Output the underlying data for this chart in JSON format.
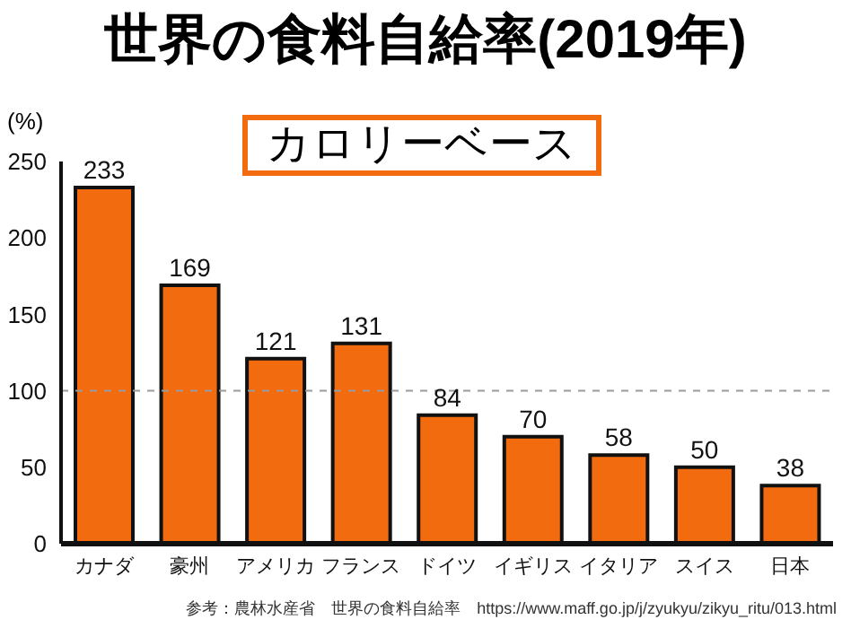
{
  "chart_data": {
    "type": "bar",
    "title": "世界の食料自給率(2019年)",
    "subtitle": "カロリーベース",
    "ylabel": "(%)",
    "categories": [
      "カナダ",
      "豪州",
      "アメリカ",
      "フランス",
      "ドイツ",
      "イギリス",
      "イタリア",
      "スイス",
      "日本"
    ],
    "values": [
      233,
      169,
      121,
      131,
      84,
      70,
      58,
      50,
      38
    ],
    "color": "#f26b0f",
    "data_labels": true,
    "ylim": [
      0,
      250
    ],
    "yticks": [
      0,
      50,
      100,
      150,
      200,
      250
    ],
    "grid": false,
    "ref_lines": [
      {
        "axis": "y",
        "value": 100,
        "label": null,
        "color": "#999999",
        "line_style": "dashed"
      }
    ],
    "annotations": [
      "参考：農林水産省　世界の食料自給率　https://www.maff.go.jp/j/zyukyu/zikyu_ritu/013.html"
    ]
  }
}
